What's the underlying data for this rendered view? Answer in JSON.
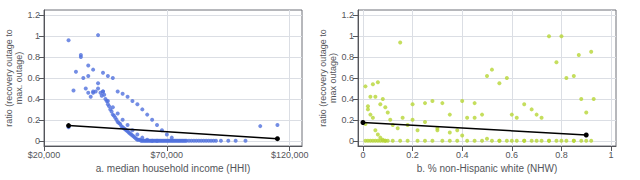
{
  "chart_data": [
    {
      "type": "scatter",
      "xlabel": "a. median household income (HHI)",
      "ylabel": "ratio (recovery outage to\nmax. outage)",
      "xlim": [
        20000,
        125000
      ],
      "ylim": [
        -0.05,
        1.25
      ],
      "xticks": [
        {
          "value": 20000,
          "label": "$20,000"
        },
        {
          "value": 70000,
          "label": "$70,000"
        },
        {
          "value": 120000,
          "label": "$120,000"
        }
      ],
      "yticks": [
        0,
        0.2,
        0.4,
        0.6,
        0.8,
        1,
        1.2
      ],
      "grid": true,
      "series": [
        {
          "type": "scatter",
          "x": [
            30000,
            32000,
            33000,
            35000,
            36000,
            37000,
            38000,
            39000,
            40000,
            41000,
            42000,
            43000,
            43500,
            44000,
            44500,
            45000,
            45500,
            46000,
            46500,
            47000,
            47500,
            48000,
            48500,
            49000,
            49500,
            50000,
            50500,
            51000,
            51500,
            52000,
            52500,
            53000,
            53500,
            54000,
            54500,
            55000,
            55500,
            56000,
            56500,
            57000,
            57500,
            58000,
            58500,
            59000,
            59500,
            60000,
            60500,
            61000,
            61500,
            62000,
            62500,
            63000,
            63500,
            64000,
            64500,
            65000,
            65500,
            66000,
            66500,
            67000,
            67500,
            68000,
            68500,
            69000,
            69500,
            70000,
            70500,
            71000,
            71500,
            72000,
            72500,
            73000,
            73500,
            74000,
            74500,
            75000,
            75500,
            76000,
            76500,
            77000,
            77500,
            78000,
            79000,
            80000,
            81000,
            82000,
            83000,
            84000,
            85000,
            86000,
            87000,
            88000,
            89000,
            90000,
            92000,
            95000,
            98000,
            102000,
            108000,
            115000,
            30000,
            35000,
            38000,
            40000,
            42000,
            44000,
            46000,
            48000,
            50000,
            52000,
            54000,
            56000,
            58000,
            60000,
            62000,
            64000,
            66000,
            68000,
            70000,
            72000,
            38000,
            40000,
            42000,
            44000,
            46000,
            48000,
            50000,
            52000,
            54000,
            56000,
            58000,
            60000,
            62000,
            64000,
            66000
          ],
          "values": [
            0.13,
            0.48,
            0.66,
            0.8,
            0.6,
            0.5,
            0.46,
            0.42,
            0.46,
            0.47,
            0.5,
            0.46,
            0.43,
            0.47,
            0.44,
            0.4,
            0.38,
            0.35,
            0.33,
            0.3,
            0.28,
            0.25,
            0.24,
            0.22,
            0.2,
            0.18,
            0.17,
            0.16,
            0.14,
            0.13,
            0.12,
            0.11,
            0.1,
            0.09,
            0.08,
            0.07,
            0.06,
            0.05,
            0.04,
            0.03,
            0.02,
            0.01,
            0.01,
            0.01,
            0.0,
            0.0,
            0.0,
            0.0,
            0.0,
            0.0,
            0.0,
            0.0,
            0.0,
            0.0,
            0.0,
            0.0,
            0.0,
            0.0,
            0.0,
            0.0,
            0.0,
            0.0,
            0.0,
            0.0,
            0.0,
            0.0,
            0.0,
            0.0,
            0.0,
            0.0,
            0.0,
            0.0,
            0.0,
            0.0,
            0.0,
            0.0,
            0.0,
            0.0,
            0.0,
            0.0,
            0.0,
            0.0,
            0.0,
            0.0,
            0.0,
            0.0,
            0.0,
            0.0,
            0.0,
            0.0,
            0.0,
            0.0,
            0.0,
            0.0,
            0.0,
            0.0,
            0.0,
            0.0,
            0.14,
            0.15,
            0.96,
            0.82,
            0.62,
            0.47,
            1.01,
            0.65,
            0.62,
            0.6,
            0.47,
            0.45,
            0.42,
            0.38,
            0.35,
            0.3,
            0.25,
            0.2,
            0.15,
            0.1,
            0.06,
            0.03,
            0.72,
            0.68,
            0.55,
            0.47,
            0.38,
            0.32,
            0.26,
            0.2,
            0.15,
            0.1,
            0.06,
            0.03,
            0.01,
            0.0,
            0.0
          ]
        },
        {
          "type": "line",
          "color": "black",
          "marker": "circle",
          "x": [
            30000,
            115000
          ],
          "values": [
            0.145,
            0.02
          ]
        }
      ]
    },
    {
      "type": "scatter",
      "xlabel": "b. % non-Hispanic white (NHW)",
      "ylabel": "ratio (recovery outage to\nmax outage)",
      "xlim": [
        -0.02,
        1.02
      ],
      "ylim": [
        -0.05,
        1.25
      ],
      "xticks": [
        0,
        0.2,
        0.4,
        0.6,
        0.8,
        1
      ],
      "yticks": [
        0,
        0.2,
        0.4,
        0.6,
        0.8,
        1,
        1.2
      ],
      "grid": true,
      "series": [
        {
          "type": "scatter",
          "x": [
            0.01,
            0.02,
            0.03,
            0.04,
            0.05,
            0.06,
            0.07,
            0.08,
            0.09,
            0.1,
            0.01,
            0.02,
            0.03,
            0.04,
            0.05,
            0.06,
            0.07,
            0.08,
            0.09,
            0.1,
            0.01,
            0.02,
            0.03,
            0.04,
            0.05,
            0.06,
            0.07,
            0.08,
            0.09,
            0.11,
            0.12,
            0.14,
            0.16,
            0.18,
            0.2,
            0.22,
            0.25,
            0.28,
            0.3,
            0.32,
            0.35,
            0.38,
            0.4,
            0.42,
            0.45,
            0.48,
            0.5,
            0.52,
            0.55,
            0.58,
            0.6,
            0.62,
            0.65,
            0.68,
            0.7,
            0.72,
            0.75,
            0.78,
            0.8,
            0.82,
            0.85,
            0.87,
            0.88,
            0.9,
            0.92,
            0.93,
            0.12,
            0.15,
            0.18,
            0.22,
            0.25,
            0.28,
            0.32,
            0.35,
            0.38,
            0.42,
            0.45,
            0.48,
            0.52,
            0.55,
            0.58,
            0.62,
            0.65,
            0.68,
            0.72,
            0.75,
            0.78,
            0.82,
            0.85,
            0.88,
            0.92,
            0.15,
            0.2,
            0.25,
            0.3,
            0.35,
            0.4,
            0.45,
            0.5,
            0.55,
            0.6,
            0.65,
            0.7,
            0.75,
            0.8,
            0.85,
            0.9
          ],
          "values": [
            0.16,
            0.33,
            0.25,
            0.54,
            0.42,
            0.56,
            0.35,
            0.4,
            0.32,
            0.27,
            0.0,
            0.0,
            0.0,
            0.0,
            0.0,
            0.0,
            0.0,
            0.0,
            0.0,
            0.0,
            0.52,
            0.3,
            0.42,
            0.22,
            0.1,
            0.06,
            0.03,
            0.01,
            0.0,
            0.2,
            0.15,
            0.12,
            0.22,
            0.15,
            0.35,
            0.1,
            0.36,
            0.38,
            0.1,
            0.36,
            0.25,
            0.1,
            0.38,
            0.22,
            0.36,
            0.25,
            0.62,
            0.68,
            0.55,
            0.6,
            0.25,
            0.22,
            0.35,
            0.3,
            0.25,
            0.22,
            1.0,
            0.75,
            1.0,
            0.6,
            0.62,
            0.82,
            0.4,
            0.27,
            0.85,
            0.4,
            0.0,
            0.0,
            0.0,
            0.0,
            0.0,
            0.0,
            0.0,
            0.0,
            0.0,
            0.0,
            0.0,
            0.0,
            0.0,
            0.0,
            0.0,
            0.0,
            0.0,
            0.0,
            0.0,
            0.0,
            0.0,
            0.0,
            0.0,
            0.0,
            0.0,
            0.94,
            0.2,
            0.18,
            0.12,
            0.08,
            0.05,
            0.22,
            0.02,
            0.0,
            0.0,
            0.0,
            0.0,
            0.0,
            0.0,
            0.0,
            0.0
          ]
        },
        {
          "type": "line",
          "color": "black",
          "marker": "circle",
          "x": [
            0.0,
            0.9
          ],
          "values": [
            0.175,
            0.055
          ]
        }
      ]
    }
  ]
}
